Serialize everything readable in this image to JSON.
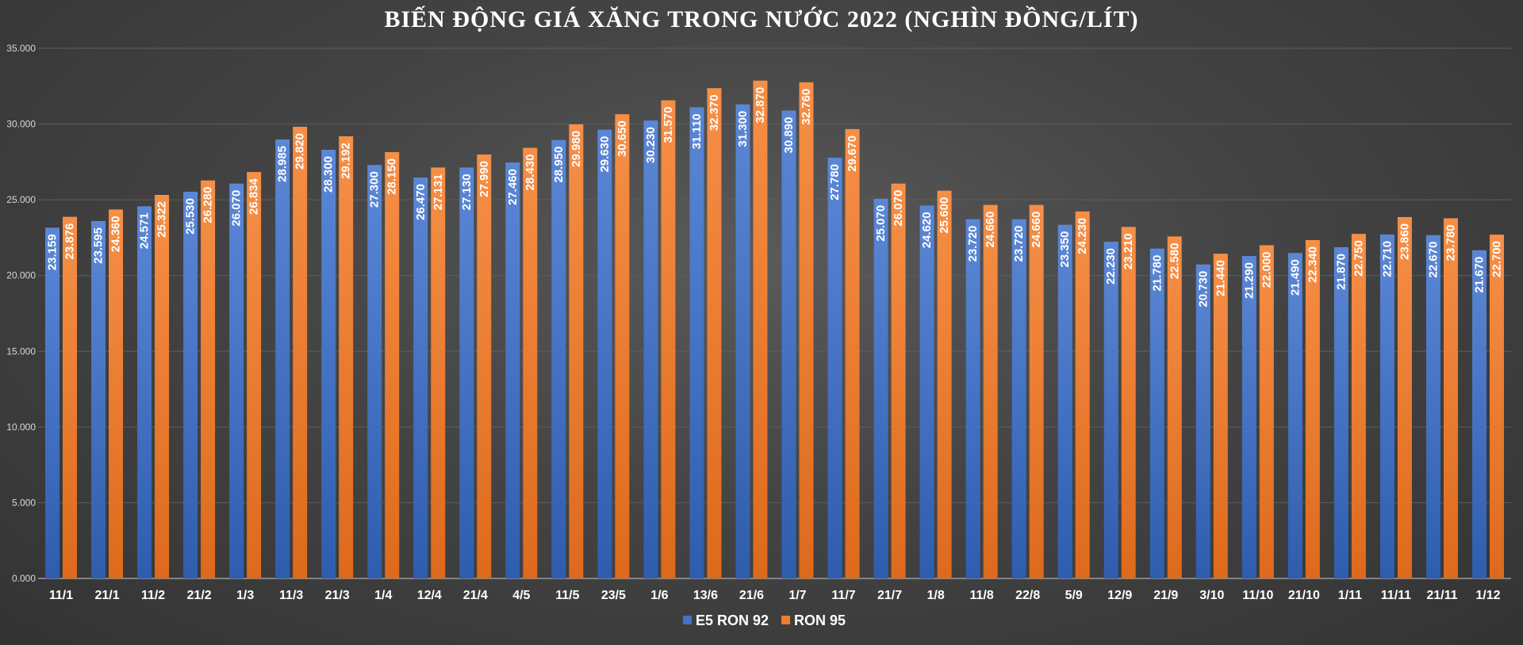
{
  "chart_data": {
    "type": "bar",
    "title": "BIẾN ĐỘNG GIÁ XĂNG TRONG NƯỚC 2022 (NGHÌN ĐỒNG/LÍT)",
    "categories": [
      "11/1",
      "21/1",
      "11/2",
      "21/2",
      "1/3",
      "11/3",
      "21/3",
      "1/4",
      "12/4",
      "21/4",
      "4/5",
      "11/5",
      "23/5",
      "1/6",
      "13/6",
      "21/6",
      "1/7",
      "11/7",
      "21/7",
      "1/8",
      "11/8",
      "22/8",
      "5/9",
      "12/9",
      "21/9",
      "3/10",
      "11/10",
      "21/10",
      "1/11",
      "11/11",
      "21/11",
      "1/12"
    ],
    "series": [
      {
        "name": "E5 RON 92",
        "color": "#4472c4",
        "values": [
          23159,
          23595,
          24571,
          25530,
          26070,
          28985,
          28300,
          27300,
          26470,
          27130,
          27460,
          28950,
          29630,
          30230,
          31110,
          31300,
          30890,
          27780,
          25070,
          24620,
          23720,
          23720,
          23350,
          22230,
          21780,
          20730,
          21290,
          21490,
          21870,
          22710,
          22670,
          21670
        ],
        "labels": [
          "23.159",
          "23.595",
          "24.571",
          "25.530",
          "26.070",
          "28.985",
          "28.300",
          "27.300",
          "26.470",
          "27.130",
          "27.460",
          "28.950",
          "29.630",
          "30.230",
          "31.110",
          "31.300",
          "30.890",
          "27.780",
          "25.070",
          "24.620",
          "23.720",
          "23.720",
          "23.350",
          "22.230",
          "21.780",
          "20.730",
          "21.290",
          "21.490",
          "21.870",
          "22.710",
          "22.670",
          "21.670"
        ]
      },
      {
        "name": "RON 95",
        "color": "#ed7d31",
        "values": [
          23876,
          24360,
          25322,
          26280,
          26834,
          29820,
          29192,
          28150,
          27131,
          27990,
          28430,
          29980,
          30650,
          31570,
          32370,
          32870,
          32760,
          29670,
          26070,
          25600,
          24660,
          24660,
          24230,
          23210,
          22580,
          21440,
          22000,
          22340,
          22750,
          23860,
          23780,
          22700
        ],
        "labels": [
          "23.876",
          "24.360",
          "25.322",
          "26.280",
          "26.834",
          "29.820",
          "29.192",
          "28.150",
          "27.131",
          "27.990",
          "28.430",
          "29.980",
          "30.650",
          "31.570",
          "32.370",
          "32.870",
          "32.760",
          "29.670",
          "26.070",
          "25.600",
          "24.660",
          "24.660",
          "24.230",
          "23.210",
          "22.580",
          "21.440",
          "22.000",
          "22.340",
          "22.750",
          "23.860",
          "23.780",
          "22.700"
        ]
      }
    ],
    "ylim": [
      0,
      35000
    ],
    "yticks": [
      0,
      5000,
      10000,
      15000,
      20000,
      25000,
      30000,
      35000
    ],
    "ytick_labels": [
      "0.000",
      "5.000",
      "10.000",
      "15.000",
      "20.000",
      "25.000",
      "30.000",
      "35.000"
    ],
    "grid": true,
    "legend_position": "bottom"
  }
}
